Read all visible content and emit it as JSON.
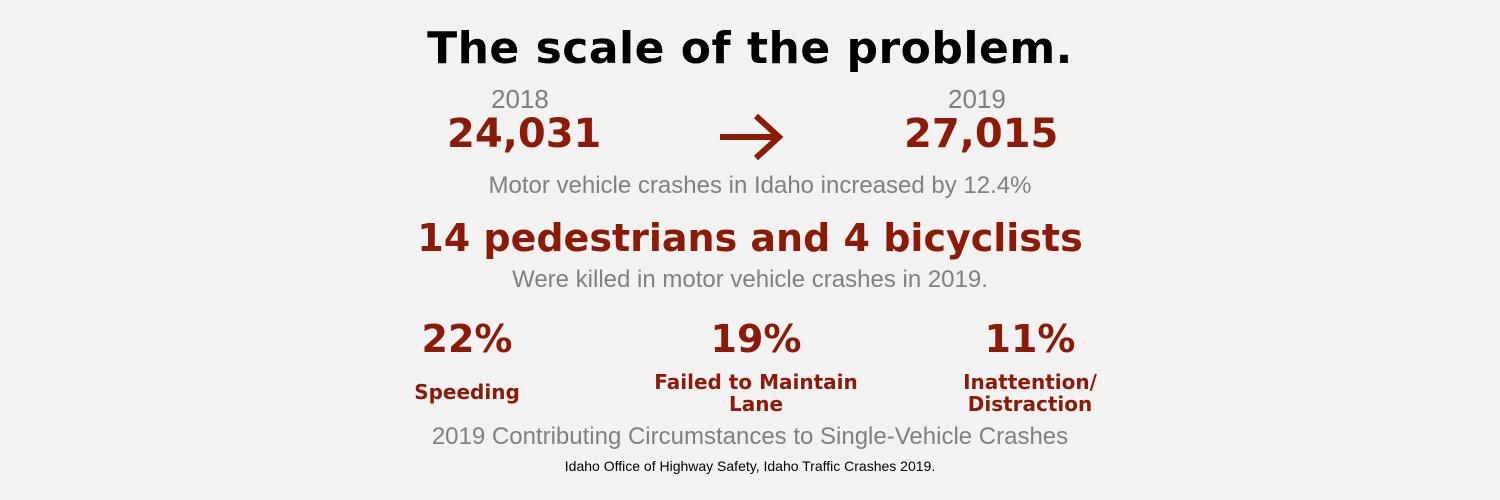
{
  "title": "The scale of the problem.",
  "crashes": {
    "year_from": "2018",
    "value_from": "24,031",
    "arrow_icon": "arrow-right-icon",
    "year_to": "2019",
    "value_to": "27,015",
    "caption": "Motor vehicle crashes in Idaho increased by 12.4%"
  },
  "fatalities": {
    "headline": "14 pedestrians and 4 bicyclists",
    "caption": "Were killed in motor vehicle crashes in 2019."
  },
  "circumstances": {
    "items": [
      {
        "percent": "22%",
        "label": "Speeding"
      },
      {
        "percent": "19%",
        "label": "Failed to Maintain Lane"
      },
      {
        "percent": "11%",
        "label": "Inattention/ Distraction"
      }
    ],
    "caption": "2019 Contributing Circumstances to Single-Vehicle Crashes"
  },
  "source": "Idaho Office of Highway Safety, Idaho Traffic Crashes 2019.",
  "colors": {
    "background": "#f2f2f2",
    "accent": "#8b1a06",
    "muted_text": "#808080",
    "title_text": "#000000"
  }
}
